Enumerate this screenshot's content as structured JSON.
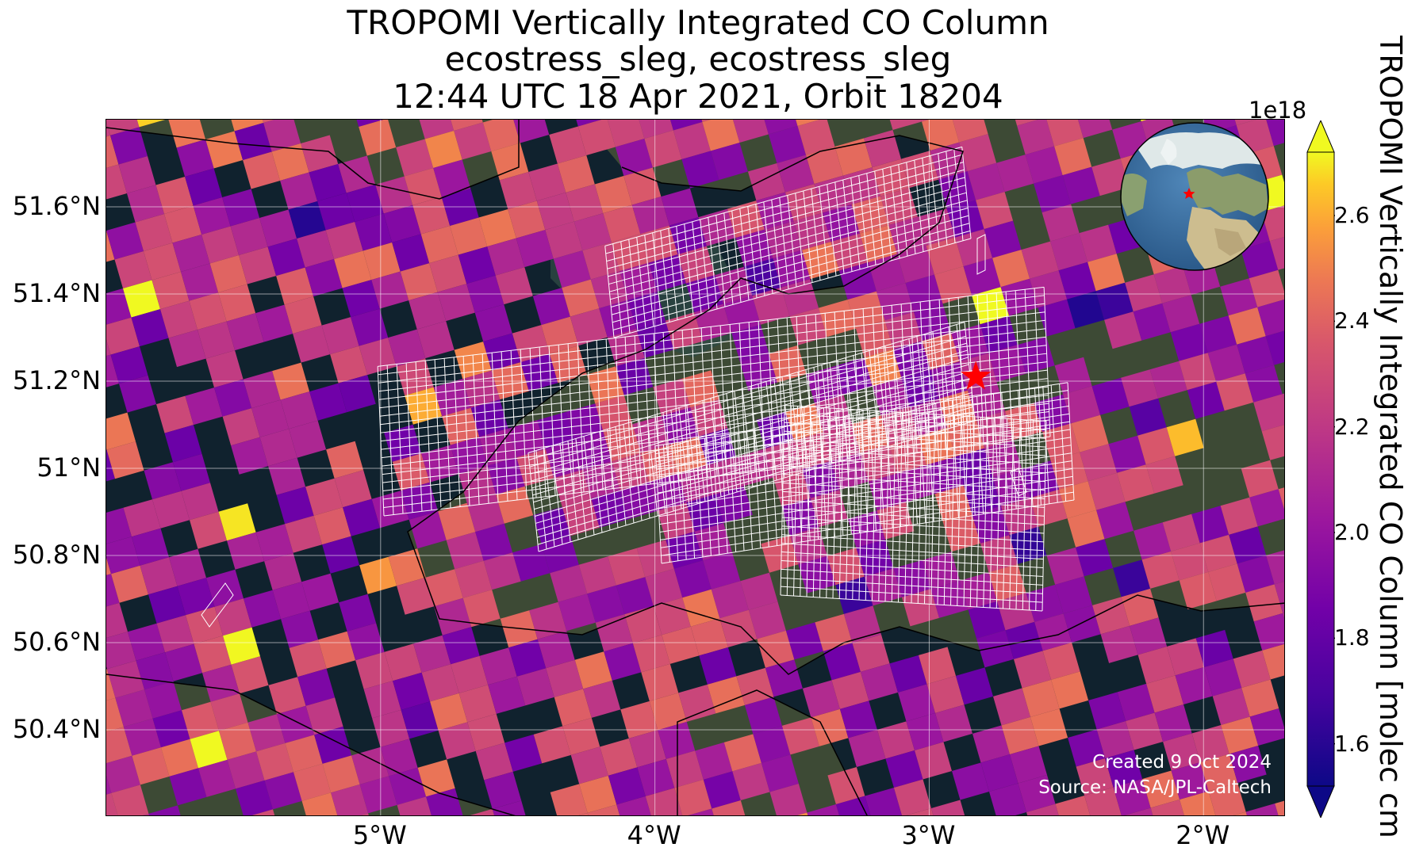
{
  "title": {
    "line1": "TROPOMI Vertically Integrated CO Column",
    "line2": "ecostress_sleg, ecostress_sleg",
    "line3": "12:44 UTC 18 Apr 2021, Orbit 18204"
  },
  "map": {
    "extent": {
      "lon_min": -6.0,
      "lon_max": -1.7,
      "lat_min": 50.2,
      "lat_max": 51.8
    },
    "lat_ticks": [
      {
        "value": 51.6,
        "label": "51.6°N"
      },
      {
        "value": 51.4,
        "label": "51.4°N"
      },
      {
        "value": 51.2,
        "label": "51.2°N"
      },
      {
        "value": 51.0,
        "label": "51°N"
      },
      {
        "value": 50.8,
        "label": "50.8°N"
      },
      {
        "value": 50.6,
        "label": "50.6°N"
      },
      {
        "value": 50.4,
        "label": "50.4°N"
      }
    ],
    "lon_ticks": [
      {
        "value": -5,
        "label": "5°W"
      },
      {
        "value": -4,
        "label": "4°W"
      },
      {
        "value": -3,
        "label": "3°W"
      },
      {
        "value": -2,
        "label": "2°W"
      }
    ],
    "target_marker": {
      "lon": -2.83,
      "lat": 51.21,
      "symbol": "star",
      "color": "#ff0000"
    },
    "gridlines": true,
    "basemap": "satellite imagery",
    "data_colormap": "plasma"
  },
  "colorbar": {
    "label": "TROPOMI Vertically Integrated CO Column [molec cm",
    "exponent_label": "1e18",
    "vmin": 1.52,
    "vmax": 2.72,
    "ticks": [
      "1.6",
      "1.8",
      "2.0",
      "2.2",
      "2.4",
      "2.6"
    ],
    "tick_values": [
      1.6,
      1.8,
      2.0,
      2.2,
      2.4,
      2.6
    ],
    "extend": "both"
  },
  "inset": {
    "type": "globe",
    "marker_color": "#ff0000"
  },
  "credits": {
    "created": "Created 9 Oct 2024",
    "source": "Source: NASA/JPL-Caltech"
  }
}
